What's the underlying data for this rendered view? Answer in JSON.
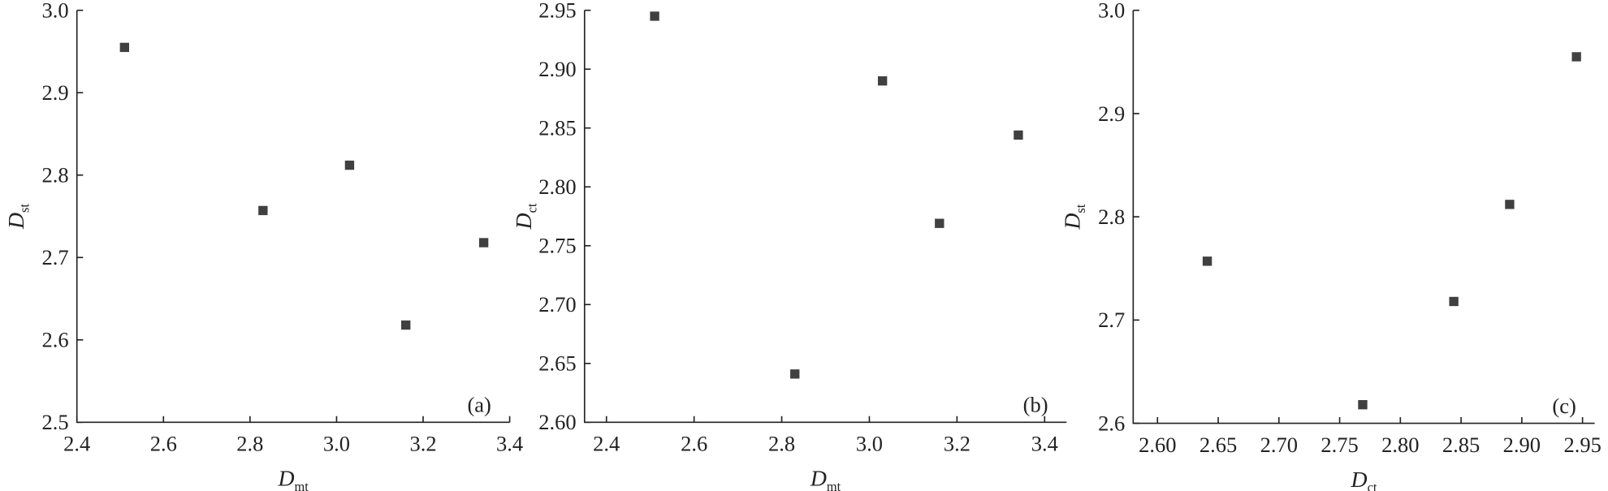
{
  "chart_data": [
    {
      "type": "scatter",
      "color": "#404040",
      "x": [
        2.51,
        2.83,
        3.03,
        3.16,
        3.34
      ],
      "values": [
        2.955,
        2.757,
        2.812,
        2.618,
        2.718
      ],
      "xlim": [
        2.4,
        3.4
      ],
      "xticks": [
        2.4,
        2.6,
        2.8,
        {
          "value": 3,
          "label": "3.0"
        },
        3.2,
        3.4
      ],
      "ylim": [
        2.5,
        3.0
      ],
      "yticks": [
        2.5,
        2.6,
        2.7,
        2.8,
        2.9,
        {
          "value": 3,
          "label": "3.0"
        }
      ],
      "xlabel": {
        "symbol": "D",
        "subscript": "mt"
      },
      "ylabel": {
        "symbol": "D",
        "subscript": "st"
      },
      "panel_label": "(a)"
    },
    {
      "type": "scatter",
      "color": "#404040",
      "x": [
        2.51,
        2.83,
        3.03,
        3.16,
        3.34
      ],
      "values": [
        2.945,
        2.641,
        2.89,
        2.769,
        2.844
      ],
      "xlim": [
        2.35,
        3.45
      ],
      "xticks": [
        2.4,
        2.6,
        2.8,
        {
          "value": 3,
          "label": "3.0"
        },
        3.2,
        3.4
      ],
      "ylim": [
        2.6,
        2.95
      ],
      "yticks": [
        {
          "value": 2.6,
          "label": "2.60"
        },
        2.65,
        {
          "value": 2.7,
          "label": "2.70"
        },
        2.75,
        {
          "value": 2.8,
          "label": "2.80"
        },
        2.85,
        {
          "value": 2.9,
          "label": "2.90"
        },
        2.95
      ],
      "xlabel": {
        "symbol": "D",
        "subscript": "mt"
      },
      "ylabel": {
        "symbol": "D",
        "subscript": "ct"
      },
      "panel_label": "(b)"
    },
    {
      "type": "scatter",
      "color": "#404040",
      "x": [
        2.945,
        2.641,
        2.89,
        2.769,
        2.844
      ],
      "values": [
        2.955,
        2.757,
        2.812,
        2.618,
        2.718
      ],
      "xlim": [
        2.58,
        2.96
      ],
      "xticks": [
        {
          "value": 2.6,
          "label": "2.60"
        },
        2.65,
        {
          "value": 2.7,
          "label": "2.70"
        },
        2.75,
        {
          "value": 2.8,
          "label": "2.80"
        },
        2.85,
        {
          "value": 2.9,
          "label": "2.90"
        },
        2.95
      ],
      "ylim": [
        2.6,
        3.0
      ],
      "yticks": [
        2.6,
        2.7,
        2.8,
        2.9,
        {
          "value": 3,
          "label": "3.0"
        }
      ],
      "xlabel": {
        "symbol": "D",
        "subscript": "ct"
      },
      "ylabel": {
        "symbol": "D",
        "subscript": "st"
      },
      "panel_label": "(c)"
    }
  ]
}
